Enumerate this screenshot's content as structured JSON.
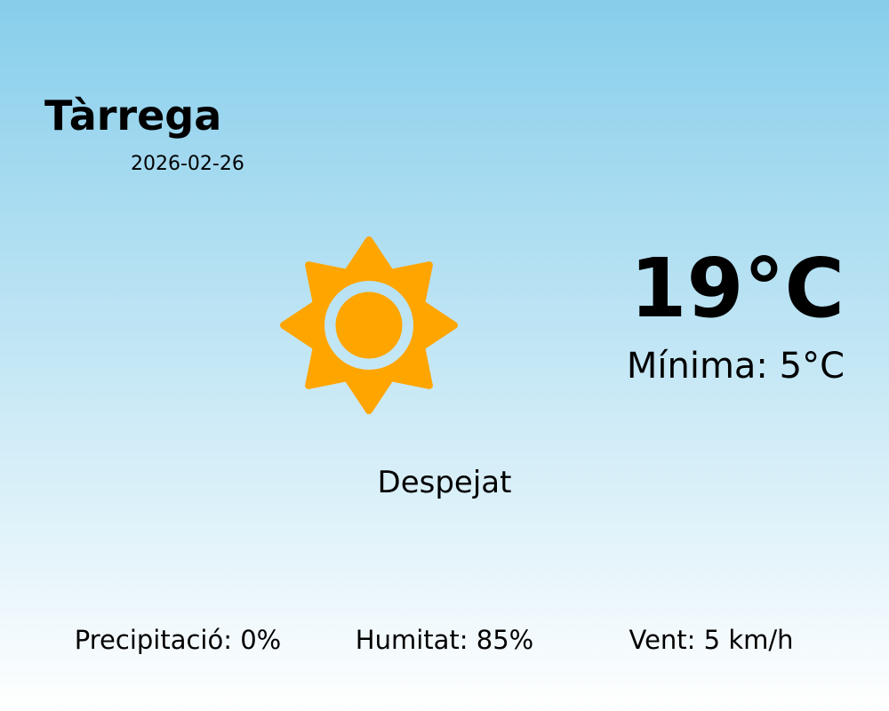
{
  "location": {
    "city": "Tàrrega",
    "date": "2026-02-26"
  },
  "weather": {
    "icon": "sun-icon",
    "icon_color": "#FFA500",
    "temperature": "19°C",
    "minimum": "Mínima: 5°C",
    "condition": "Despejat"
  },
  "stats": {
    "precipitation": "Precipitació: 0%",
    "humidity": "Humitat: 85%",
    "wind": "Vent: 5 km/h"
  }
}
